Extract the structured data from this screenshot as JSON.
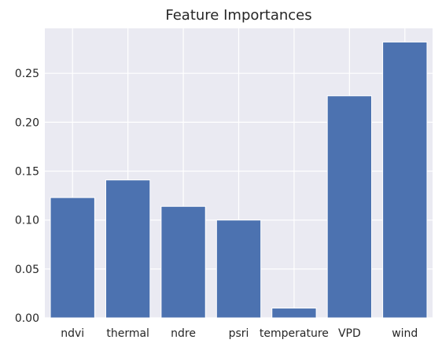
{
  "chart_data": {
    "type": "bar",
    "title": "Feature Importances",
    "xlabel": "",
    "ylabel": "",
    "categories": [
      "ndvi",
      "thermal",
      "ndre",
      "psri",
      "temperature",
      "VPD",
      "wind"
    ],
    "values": [
      0.123,
      0.141,
      0.114,
      0.1,
      0.01,
      0.227,
      0.282
    ],
    "ylim": [
      0,
      0.296
    ],
    "yticks": [
      "0.00",
      "0.05",
      "0.10",
      "0.15",
      "0.20",
      "0.25"
    ],
    "grid": true,
    "bar_color": "#4c72b0",
    "background_color": "#eaeaf2",
    "grid_color": "#ffffff"
  }
}
